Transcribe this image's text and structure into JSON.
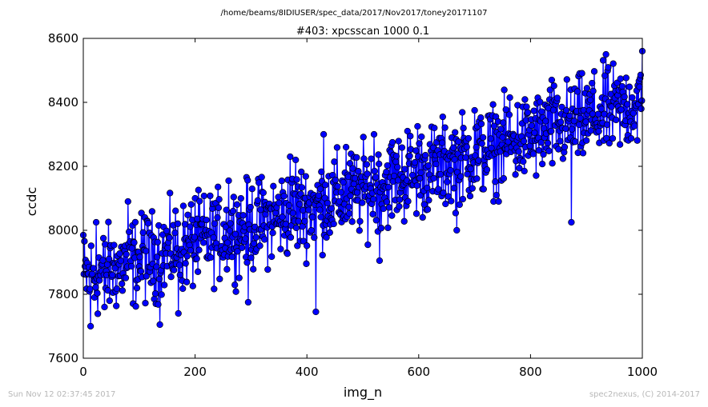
{
  "chart_data": {
    "type": "line",
    "suptitle": "/home/beams/8IDIUSER/spec_data/2017/Nov2017/toney20171107",
    "title": "#403: xpcsscan 1000 0.1",
    "xlabel": "img_n",
    "ylabel": "ccdc",
    "xlim": [
      0,
      1000
    ],
    "ylim": [
      7600,
      8600
    ],
    "xticks": [
      0,
      200,
      400,
      600,
      800,
      1000
    ],
    "yticks": [
      7600,
      7800,
      8000,
      8200,
      8400,
      8600
    ],
    "grid": false,
    "marker": "circle",
    "line_color": "#0000ff",
    "marker_color": "#0000ff",
    "trend": {
      "start": 7850,
      "end": 8400
    },
    "noise_amplitude": 90,
    "n_points": 1000,
    "series": [
      {
        "x": [
          0,
          13,
          15,
          20,
          23,
          38,
          80,
          110,
          137,
          170,
          200,
          260,
          295,
          320,
          370,
          380,
          416,
          430,
          470,
          520,
          530,
          553,
          580,
          598,
          668,
          700,
          763,
          838,
          873,
          910,
          935,
          1000
        ],
        "y": [
          7985,
          7700,
          7860,
          7790,
          8025,
          7760,
          8090,
          8040,
          7705,
          7740,
          8100,
          8155,
          7775,
          8120,
          8230,
          8220,
          7745,
          8300,
          8260,
          8300,
          7905,
          8275,
          8310,
          8325,
          8000,
          8375,
          8415,
          8470,
          8025,
          8460,
          8550,
          8560
        ]
      }
    ]
  },
  "footer": {
    "left": "Sun Nov 12 02:37:45 2017",
    "right": "spec2nexus, (C) 2014-2017"
  }
}
